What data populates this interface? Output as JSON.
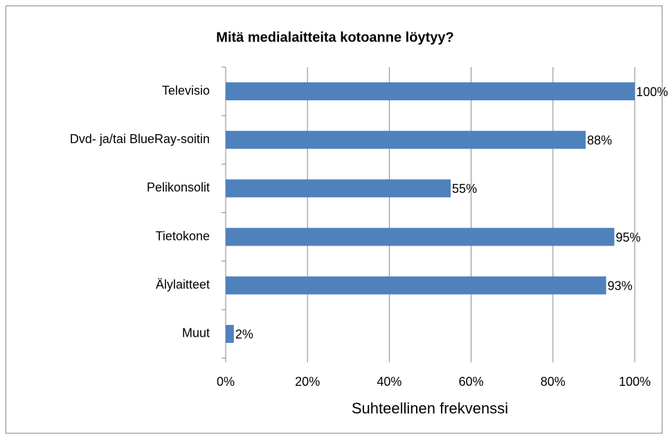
{
  "chart_data": {
    "type": "bar",
    "orientation": "horizontal",
    "title": "Mitä medialaitteita kotoanne löytyy?",
    "x_label": "Suhteellinen frekvenssi",
    "categories": [
      "Televisio",
      "Dvd- ja/tai BlueRay-soitin",
      "Pelikonsolit",
      "Tietokone",
      "Älylaitteet",
      "Muut"
    ],
    "values": [
      100,
      88,
      55,
      95,
      93,
      2
    ],
    "value_labels": [
      "100%",
      "88%",
      "55%",
      "95%",
      "93%",
      "2%"
    ],
    "color": "#4f81bd",
    "xlim": [
      0,
      100
    ],
    "xticks": [
      {
        "value": 0,
        "label": "0%"
      },
      {
        "value": 20,
        "label": "20%"
      },
      {
        "value": 40,
        "label": "40%"
      },
      {
        "value": 60,
        "label": "60%"
      },
      {
        "value": 80,
        "label": "80%"
      },
      {
        "value": 100,
        "label": "100%"
      }
    ],
    "grid": true
  }
}
